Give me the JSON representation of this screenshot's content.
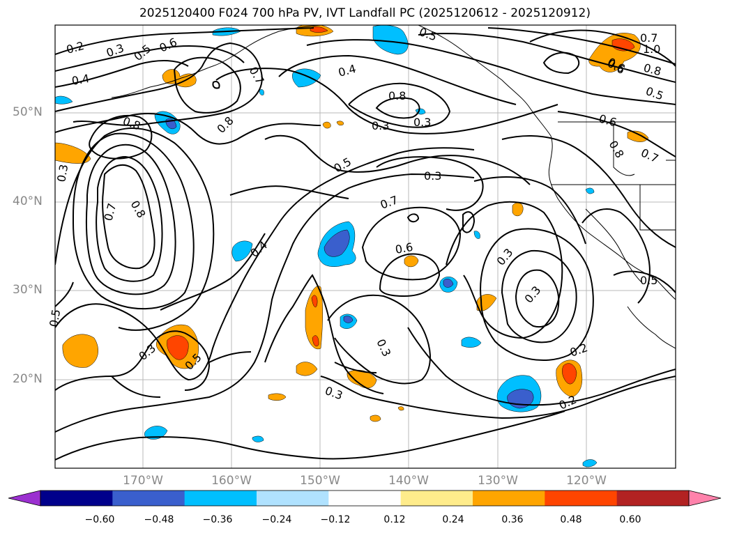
{
  "title": "2025120400 F024 700 hPa PV, IVT Landfall PC (2025120612 - 2025120912)",
  "map": {
    "lat_labels": [
      "50°N",
      "40°N",
      "30°N",
      "20°N"
    ],
    "lon_labels": [
      "170°W",
      "160°W",
      "150°W",
      "140°W",
      "130°W",
      "120°W"
    ],
    "contour_labels": [
      "0.2",
      "0.3",
      "0.5",
      "0.6",
      "0.4",
      "0.7",
      "0.8",
      "0.5",
      "0.6",
      "0.7",
      "1.0",
      "0.6",
      "0.8",
      "0.5",
      "0.8",
      "0.8",
      "0.3",
      "0.7",
      "0.8",
      "0.5",
      "0.3",
      "0.3",
      "0.6",
      "0.8",
      "0.7",
      "0.4",
      "0.4",
      "0.3",
      "0.7",
      "0.6",
      "0.3",
      "0.3",
      "0.5",
      "0.5",
      "0.3",
      "0.5",
      "0.3",
      "0.2",
      "0.3",
      "0.2"
    ]
  },
  "colorbar": {
    "colors": [
      "#9b30d0",
      "#00008b",
      "#3a5fcd",
      "#00bfff",
      "#b0e2ff",
      "#ffffff",
      "#ffec8b",
      "#ffa500",
      "#ff4500",
      "#b22222",
      "#ff82ab"
    ],
    "ticks": [
      "−0.60",
      "−0.48",
      "−0.36",
      "−0.24",
      "−0.12",
      "0.12",
      "0.24",
      "0.36",
      "0.48",
      "0.60"
    ]
  }
}
